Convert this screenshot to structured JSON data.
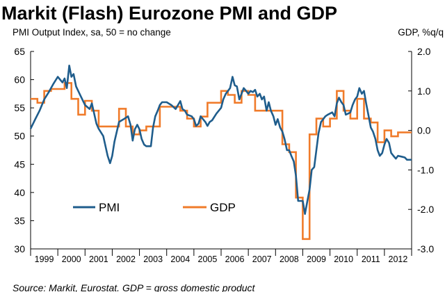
{
  "colors": {
    "pmi": "#1F5D8C",
    "gdp": "#F07B2A",
    "axis": "#000000",
    "grid": "none"
  },
  "chart_data": {
    "type": "line",
    "title": "Markit (Flash) Eurozone PMI and GDP",
    "left_axis_label": "PMI Output Index, sa, 50 = no change",
    "right_axis_label": "GDP, %q/q",
    "source": "Source: Markit, Eurostat. GDP = gross domestic product",
    "grid": false,
    "legend_position": "bottom-left",
    "x_range": [
      1999.0,
      2013.0
    ],
    "x_ticks": [
      "1999",
      "2000",
      "2001",
      "2002",
      "2003",
      "2004",
      "2005",
      "2006",
      "2007",
      "2008",
      "2009",
      "2010",
      "2011",
      "2012"
    ],
    "y_left": {
      "range": [
        30,
        65
      ],
      "ticks": [
        "65",
        "60",
        "55",
        "50",
        "45",
        "40",
        "35",
        "30"
      ]
    },
    "y_right": {
      "range": [
        -3.0,
        2.0
      ],
      "ticks": [
        "2.0",
        "1.0",
        "0.0",
        "-1.0",
        "-2.0",
        "-3.0"
      ]
    },
    "series": [
      {
        "name": "PMI",
        "axis": "left",
        "step": false,
        "points": [
          [
            1999.0,
            51.3
          ],
          [
            1999.17,
            53.0
          ],
          [
            1999.33,
            54.5
          ],
          [
            1999.5,
            56.5
          ],
          [
            1999.67,
            57.8
          ],
          [
            1999.83,
            59.2
          ],
          [
            2000.0,
            60.5
          ],
          [
            2000.17,
            59.5
          ],
          [
            2000.25,
            60.2
          ],
          [
            2000.33,
            58.5
          ],
          [
            2000.42,
            62.5
          ],
          [
            2000.5,
            60.5
          ],
          [
            2000.58,
            61.0
          ],
          [
            2000.67,
            58.8
          ],
          [
            2000.83,
            57.2
          ],
          [
            2001.0,
            55.5
          ],
          [
            2001.17,
            54.8
          ],
          [
            2001.25,
            55.8
          ],
          [
            2001.42,
            52.2
          ],
          [
            2001.5,
            51.3
          ],
          [
            2001.67,
            50.0
          ],
          [
            2001.83,
            46.5
          ],
          [
            2001.92,
            45.2
          ],
          [
            2002.0,
            46.5
          ],
          [
            2002.08,
            49.0
          ],
          [
            2002.25,
            52.5
          ],
          [
            2002.42,
            53.0
          ],
          [
            2002.58,
            53.5
          ],
          [
            2002.67,
            52.0
          ],
          [
            2002.75,
            49.2
          ],
          [
            2002.83,
            51.2
          ],
          [
            2002.92,
            52.0
          ],
          [
            2003.0,
            51.2
          ],
          [
            2003.08,
            49.5
          ],
          [
            2003.17,
            48.5
          ],
          [
            2003.25,
            48.2
          ],
          [
            2003.42,
            48.2
          ],
          [
            2003.5,
            51.5
          ],
          [
            2003.58,
            53.5
          ],
          [
            2003.67,
            54.5
          ],
          [
            2003.75,
            55.5
          ],
          [
            2003.83,
            56.0
          ],
          [
            2004.0,
            56.0
          ],
          [
            2004.17,
            55.5
          ],
          [
            2004.33,
            54.8
          ],
          [
            2004.5,
            56.2
          ],
          [
            2004.58,
            54.8
          ],
          [
            2004.67,
            54.5
          ],
          [
            2004.75,
            53.8
          ],
          [
            2004.92,
            53.5
          ],
          [
            2005.0,
            53.0
          ],
          [
            2005.08,
            51.8
          ],
          [
            2005.17,
            52.2
          ],
          [
            2005.25,
            53.5
          ],
          [
            2005.42,
            52.5
          ],
          [
            2005.5,
            51.8
          ],
          [
            2005.58,
            52.5
          ],
          [
            2005.67,
            52.8
          ],
          [
            2005.83,
            54.0
          ],
          [
            2006.0,
            55.0
          ],
          [
            2006.08,
            56.5
          ],
          [
            2006.17,
            57.5
          ],
          [
            2006.25,
            58.0
          ],
          [
            2006.33,
            58.5
          ],
          [
            2006.42,
            60.5
          ],
          [
            2006.5,
            59.0
          ],
          [
            2006.58,
            58.8
          ],
          [
            2006.67,
            56.5
          ],
          [
            2006.75,
            57.5
          ],
          [
            2006.83,
            58.5
          ],
          [
            2006.92,
            58.0
          ],
          [
            2007.0,
            57.5
          ],
          [
            2007.08,
            58.0
          ],
          [
            2007.17,
            57.8
          ],
          [
            2007.25,
            58.2
          ],
          [
            2007.33,
            57.0
          ],
          [
            2007.42,
            57.5
          ],
          [
            2007.5,
            56.5
          ],
          [
            2007.58,
            57.0
          ],
          [
            2007.67,
            54.5
          ],
          [
            2007.75,
            56.0
          ],
          [
            2007.83,
            54.5
          ],
          [
            2007.92,
            53.5
          ],
          [
            2008.0,
            52.0
          ],
          [
            2008.08,
            53.0
          ],
          [
            2008.17,
            51.5
          ],
          [
            2008.25,
            50.8
          ],
          [
            2008.33,
            49.5
          ],
          [
            2008.42,
            47.5
          ],
          [
            2008.5,
            47.5
          ],
          [
            2008.58,
            46.5
          ],
          [
            2008.67,
            45.5
          ],
          [
            2008.75,
            43.0
          ],
          [
            2008.83,
            38.5
          ],
          [
            2009.0,
            38.5
          ],
          [
            2009.08,
            36.2
          ],
          [
            2009.17,
            38.5
          ],
          [
            2009.25,
            40.5
          ],
          [
            2009.33,
            44.0
          ],
          [
            2009.42,
            44.5
          ],
          [
            2009.5,
            47.5
          ],
          [
            2009.58,
            50.5
          ],
          [
            2009.67,
            52.5
          ],
          [
            2009.75,
            53.0
          ],
          [
            2009.83,
            53.5
          ],
          [
            2009.92,
            53.8
          ],
          [
            2010.0,
            54.0
          ],
          [
            2010.08,
            54.2
          ],
          [
            2010.17,
            53.5
          ],
          [
            2010.25,
            55.8
          ],
          [
            2010.33,
            56.8
          ],
          [
            2010.42,
            56.0
          ],
          [
            2010.5,
            55.5
          ],
          [
            2010.58,
            53.8
          ],
          [
            2010.67,
            54.0
          ],
          [
            2010.75,
            54.2
          ],
          [
            2010.83,
            55.5
          ],
          [
            2010.92,
            56.5
          ],
          [
            2011.0,
            57.0
          ],
          [
            2011.08,
            58.5
          ],
          [
            2011.17,
            57.5
          ],
          [
            2011.25,
            58.0
          ],
          [
            2011.33,
            55.8
          ],
          [
            2011.42,
            53.5
          ],
          [
            2011.5,
            51.5
          ],
          [
            2011.58,
            50.8
          ],
          [
            2011.67,
            49.5
          ],
          [
            2011.75,
            47.5
          ],
          [
            2011.83,
            46.5
          ],
          [
            2011.92,
            47.0
          ],
          [
            2012.0,
            48.5
          ],
          [
            2012.08,
            49.5
          ],
          [
            2012.17,
            48.8
          ],
          [
            2012.25,
            47.0
          ],
          [
            2012.33,
            46.5
          ],
          [
            2012.42,
            46.0
          ],
          [
            2012.5,
            46.5
          ],
          [
            2012.67,
            46.3
          ],
          [
            2012.75,
            46.2
          ],
          [
            2012.83,
            45.8
          ],
          [
            2013.0,
            45.8
          ]
        ]
      },
      {
        "name": "GDP",
        "axis": "right",
        "step": true,
        "quarter_starts": [
          1999.0,
          1999.25,
          1999.5,
          1999.75,
          2000.0,
          2000.25,
          2000.5,
          2000.75,
          2001.0,
          2001.25,
          2001.5,
          2001.75,
          2002.0,
          2002.25,
          2002.5,
          2002.75,
          2003.0,
          2003.25,
          2003.5,
          2003.75,
          2004.0,
          2004.25,
          2004.5,
          2004.75,
          2005.0,
          2005.25,
          2005.5,
          2005.75,
          2006.0,
          2006.25,
          2006.5,
          2006.75,
          2007.0,
          2007.25,
          2007.5,
          2007.75,
          2008.0,
          2008.25,
          2008.5,
          2008.75,
          2009.0,
          2009.25,
          2009.5,
          2009.75,
          2010.0,
          2010.25,
          2010.5,
          2010.75,
          2011.0,
          2011.25,
          2011.5,
          2011.75,
          2012.0,
          2012.25,
          2012.5,
          2012.75
        ],
        "values": [
          0.8,
          0.7,
          1.0,
          1.05,
          1.05,
          1.2,
          0.8,
          0.4,
          0.75,
          0.5,
          0.1,
          0.1,
          0.1,
          0.55,
          0.1,
          -0.1,
          0.0,
          0.1,
          0.1,
          0.6,
          0.6,
          0.6,
          0.5,
          0.3,
          0.1,
          0.35,
          0.7,
          0.7,
          1.0,
          0.9,
          0.7,
          1.0,
          0.9,
          0.5,
          0.5,
          0.5,
          0.5,
          -0.35,
          -0.55,
          -1.7,
          -2.75,
          -0.1,
          0.3,
          0.1,
          0.3,
          1.0,
          0.5,
          0.3,
          0.8,
          0.3,
          0.2,
          -0.3,
          0.0,
          -0.15,
          -0.05,
          -0.05
        ],
        "end": 2013.0
      }
    ]
  }
}
